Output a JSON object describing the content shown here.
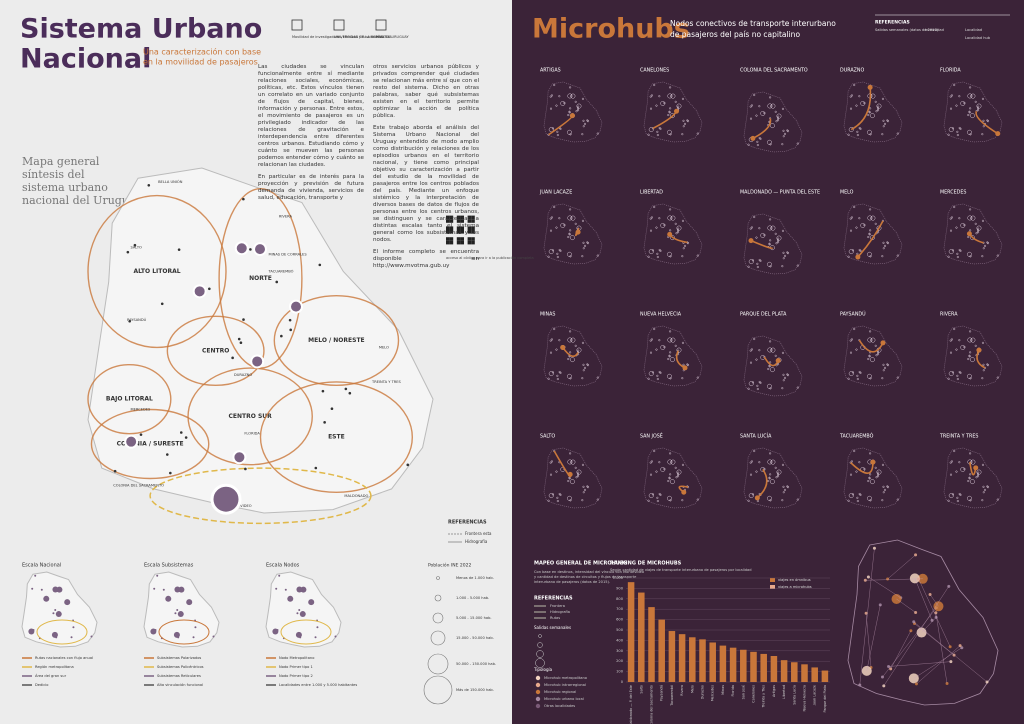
{
  "left": {
    "title": [
      "Sistema Urbano",
      "Nacional"
    ],
    "subtitle": [
      "Una caracterización con base",
      "en la movilidad de pasajeros"
    ],
    "logos": [
      "Movilidad de investigadores, técnicos y funcionarios",
      "UNIVERSIDAD DE LA REPÚBLICA URUGUAY",
      "MVOTMA"
    ],
    "paragraphs_col1": [
      "Las ciudades se vinculan funcionalmente entre sí mediante relaciones sociales, económicas, políticas, etc. Estos vínculos tienen un correlato en un variado conjunto de flujos de capital, bienes, información y personas. Entre estos, el movimiento de pasajeros es un privilegiado indicador de las relaciones de gravitación e interdependencia entre diferentes centros urbanos. Estudiando cómo y cuánto se mueven las personas podemos entender cómo y cuánto se relacionan las ciudades.",
      "En particular es de interés para la proyección y previsión de futura demanda de vivienda, servicios de salud, educación, transporte y"
    ],
    "paragraphs_col2": [
      "otros servicios urbanos públicos y privados comprender qué ciudades se relacionan más entre sí que con el resto del sistema. Dicho en otras palabras, saber qué subsistemas existen en el territorio permite optimizar la acción de política pública.",
      "Este trabajo aborda el análisis del Sistema Urbano Nacional del Uruguay entendido de modo amplio como distribución y relaciones de los episodios urbanos en el territorio nacional, y tiene como principal objetivo su caracterización a partir del estudio de la movilidad de pasajeros entre los centros poblados del país. Mediante un enfoque sistémico y la interpretación de diversos bases de datos de flujos de personas entre los centros urbanos, se distinguen y se caracterizan a distintas escalas tanto el sistema general como los subsistemas y los nodos.",
      "El informe completo se encuentra disponible en http://www.mvotma.gub.uy"
    ],
    "qr_caption": "acceso al código para ir a la publicación completa",
    "map_title": "Mapa general síntesis del sistema urbano nacional del Uruguay",
    "regions": [
      "ALTO LITORAL",
      "NORTE",
      "MELO / NORESTE",
      "CENTRO",
      "BAJO LITORAL",
      "COLONIA / SURESTE",
      "CENTRO SUR",
      "ESTE"
    ],
    "cities": [
      "BELLA UNIÓN",
      "SALTO",
      "PAYSANDÚ",
      "TACUAREMBÓ",
      "RIVERA",
      "MELO",
      "DURAZNO",
      "MERCEDES",
      "COLONIA DEL SACRAMENTO",
      "MONTEVIDEO",
      "MALDONADO",
      "TREINTA Y TRES",
      "MINAS DE CORRALES",
      "FLORIDA"
    ],
    "references": {
      "title": "REFERENCIAS",
      "items": [
        "Frontera esta",
        "Hidrografía"
      ]
    },
    "scales": [
      "Escala Nacional",
      "Escala Subsistemas",
      "Escala Nodos"
    ],
    "scale_legends": [
      [
        "Rutas nacionales con flujo anual",
        "Región metropolitana",
        "Área del gran sur",
        "Dedicio"
      ],
      [
        "Subsistemas Polarizados",
        "Subsistemas Policéntricos",
        "Subsistemas Reticulares",
        "Alta vinculación funcional"
      ],
      [
        "Nodo Metropolitano",
        "Nodo Primer tipo 1",
        "Nodo Primer tipo 2",
        "Localidades entre 1.000 y 5.000 habitantes"
      ]
    ],
    "population": {
      "title": "Población INE 2022",
      "items": [
        "Menos de 1.000 hab.",
        "1.000 - 5.000 hab.",
        "5.000 - 15.000 hab.",
        "15.000 - 50.000 hab.",
        "50.000 - 150.000 hab.",
        "Más de 150.000 hab."
      ]
    }
  },
  "right": {
    "title": "Microhubs",
    "subtitle": [
      "Nodos conectivos de transporte interurbano",
      "de pasajeros del país no capitalino"
    ],
    "references": {
      "title": "REFERENCIAS",
      "items": [
        "Salidas semanales (datos de 2015)",
        "Intensidad",
        "Localidad",
        "Localidad hub"
      ]
    },
    "microhubs": [
      "ARTIGAS",
      "CANELONES",
      "COLONIA DEL SACRAMENTO",
      "DURAZNO",
      "FLORIDA",
      "JUAN LACAZE",
      "LIBERTAD",
      "MALDONADO — PUNTA DEL ESTE",
      "MELO",
      "MERCEDES",
      "MINAS",
      "NUEVA HELVECIA",
      "PARQUE DEL PLATA",
      "PAYSANDÚ",
      "RIVERA",
      "SALTO",
      "SAN JOSÉ",
      "SANTA LUCÍA",
      "TACUAREMBÓ",
      "TREINTA Y TRES"
    ],
    "mapping": {
      "title": "MAPEO GENERAL DE MICROHUBS",
      "text": "Con base en destinos, intensidad del vínculo con Montevideo y cantidad de destinos de circuitos y flujos de transporte interurbano de pasajeros (datos de 2015).",
      "ref_title": "REFERENCIAS",
      "ref_items": [
        "Frontera",
        "Hidrografía",
        "Rutas"
      ],
      "sizes_title": "Salidas semanales",
      "types_title": "Tipología",
      "types": [
        "Microhub metropolitano",
        "Microhub intrarregional",
        "Microhub regional",
        "Microhub urbano local",
        "Otras localidades"
      ]
    },
    "ranking": {
      "type": "bar",
      "title": "RANKING DE MICROHUBS",
      "subtitle": "Según cantidad de viajes de transporte interurbano de pasajeros por localidad",
      "legend": [
        "viajes en ómnibus",
        "viajes a microhubs"
      ],
      "color": "#c9773a",
      "categories": [
        "Maldonado — P. del Este",
        "Salto",
        "Colonia del Sacramento",
        "Paysandú",
        "Tacuarembó",
        "Rivera",
        "Melo",
        "Durazno",
        "Mercedes",
        "Minas",
        "Florida",
        "San José",
        "Canelones",
        "Treinta y Tres",
        "Artigas",
        "Libertad",
        "Santa Lucía",
        "Nueva Helvecia",
        "Juan Lacaze",
        "Parque del Plata"
      ],
      "values": [
        960,
        860,
        720,
        600,
        490,
        460,
        430,
        410,
        380,
        350,
        330,
        310,
        290,
        270,
        250,
        210,
        190,
        170,
        140,
        110
      ],
      "ylim": [
        0,
        1000
      ],
      "yticks": [
        0,
        100,
        200,
        300,
        400,
        500,
        600,
        700,
        800,
        900,
        {
          "value": 1000,
          "label": "1.000"
        }
      ]
    }
  }
}
